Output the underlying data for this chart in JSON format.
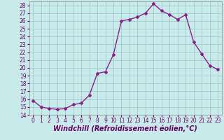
{
  "x": [
    0,
    1,
    2,
    3,
    4,
    5,
    6,
    7,
    8,
    9,
    10,
    11,
    12,
    13,
    14,
    15,
    16,
    17,
    18,
    19,
    20,
    21,
    22,
    23
  ],
  "y": [
    15.8,
    15.0,
    14.8,
    14.7,
    14.8,
    15.3,
    15.5,
    16.5,
    19.3,
    19.5,
    21.7,
    26.0,
    26.2,
    26.5,
    27.0,
    28.2,
    27.3,
    26.8,
    26.2,
    26.8,
    23.3,
    21.8,
    20.3,
    19.8
  ],
  "line_color": "#882288",
  "marker": "D",
  "marker_size": 2,
  "bg_color": "#c8eaea",
  "grid_color": "#a0cccc",
  "xlabel": "Windchill (Refroidissement éolien,°C)",
  "ylim": [
    14,
    28.5
  ],
  "xlim": [
    -0.5,
    23.5
  ],
  "yticks": [
    14,
    15,
    16,
    17,
    18,
    19,
    20,
    21,
    22,
    23,
    24,
    25,
    26,
    27,
    28
  ],
  "xticks": [
    0,
    1,
    2,
    3,
    4,
    5,
    6,
    7,
    8,
    9,
    10,
    11,
    12,
    13,
    14,
    15,
    16,
    17,
    18,
    19,
    20,
    21,
    22,
    23
  ],
  "tick_label_fontsize": 5.5,
  "xlabel_fontsize": 7,
  "line_width": 1.0
}
